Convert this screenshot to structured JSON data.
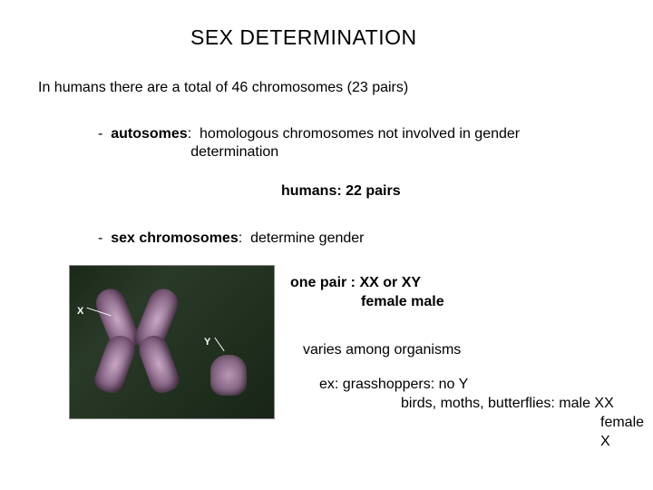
{
  "title": "SEX DETERMINATION",
  "intro": "In humans there are a total of 46 chromosomes (23 pairs)",
  "autosomes": {
    "bullet": "-",
    "label": "autosomes",
    "colon": ":",
    "def1": "homologous chromosomes not involved in gender",
    "def2": "determination"
  },
  "humans22": "humans:  22 pairs",
  "sexchrom": {
    "bullet": "-",
    "label": "sex chromosomes",
    "colon": ":",
    "def": "determine gender"
  },
  "image": {
    "label_x": "X",
    "label_y": "Y"
  },
  "pair": {
    "line": "one pair :   XX    or     XY",
    "sub": "female          male"
  },
  "varies": "varies among organisms",
  "examples": {
    "line1": "ex:  grasshoppers:  no Y",
    "line2": "birds, moths, butterflies:  male  XX",
    "line3": "female  X"
  }
}
